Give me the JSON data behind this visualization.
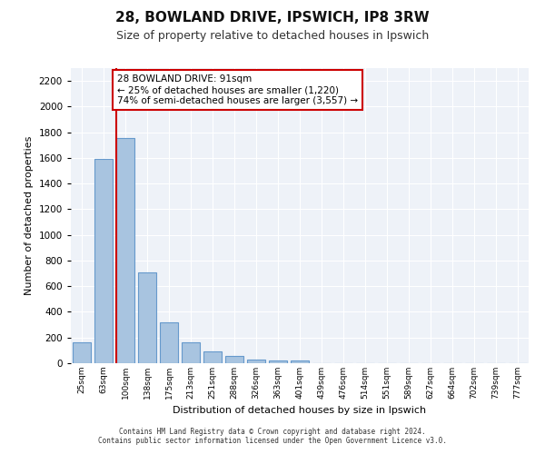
{
  "title1": "28, BOWLAND DRIVE, IPSWICH, IP8 3RW",
  "title2": "Size of property relative to detached houses in Ipswich",
  "xlabel": "Distribution of detached houses by size in Ipswich",
  "ylabel": "Number of detached properties",
  "categories": [
    "25sqm",
    "63sqm",
    "100sqm",
    "138sqm",
    "175sqm",
    "213sqm",
    "251sqm",
    "288sqm",
    "326sqm",
    "363sqm",
    "401sqm",
    "439sqm",
    "476sqm",
    "514sqm",
    "551sqm",
    "589sqm",
    "627sqm",
    "664sqm",
    "702sqm",
    "739sqm",
    "777sqm"
  ],
  "values": [
    160,
    1590,
    1755,
    710,
    315,
    160,
    90,
    55,
    30,
    20,
    20,
    0,
    0,
    0,
    0,
    0,
    0,
    0,
    0,
    0,
    0
  ],
  "bar_color": "#a8c4e0",
  "bar_edge_color": "#6699cc",
  "vline_x": 1.575,
  "vline_color": "#cc0000",
  "annotation_text": "28 BOWLAND DRIVE: 91sqm\n← 25% of detached houses are smaller (1,220)\n74% of semi-detached houses are larger (3,557) →",
  "annotation_box_color": "#ffffff",
  "annotation_box_edge": "#cc0000",
  "ylim": [
    0,
    2300
  ],
  "yticks": [
    0,
    200,
    400,
    600,
    800,
    1000,
    1200,
    1400,
    1600,
    1800,
    2000,
    2200
  ],
  "bg_color": "#eef2f8",
  "footer1": "Contains HM Land Registry data © Crown copyright and database right 2024.",
  "footer2": "Contains public sector information licensed under the Open Government Licence v3.0."
}
